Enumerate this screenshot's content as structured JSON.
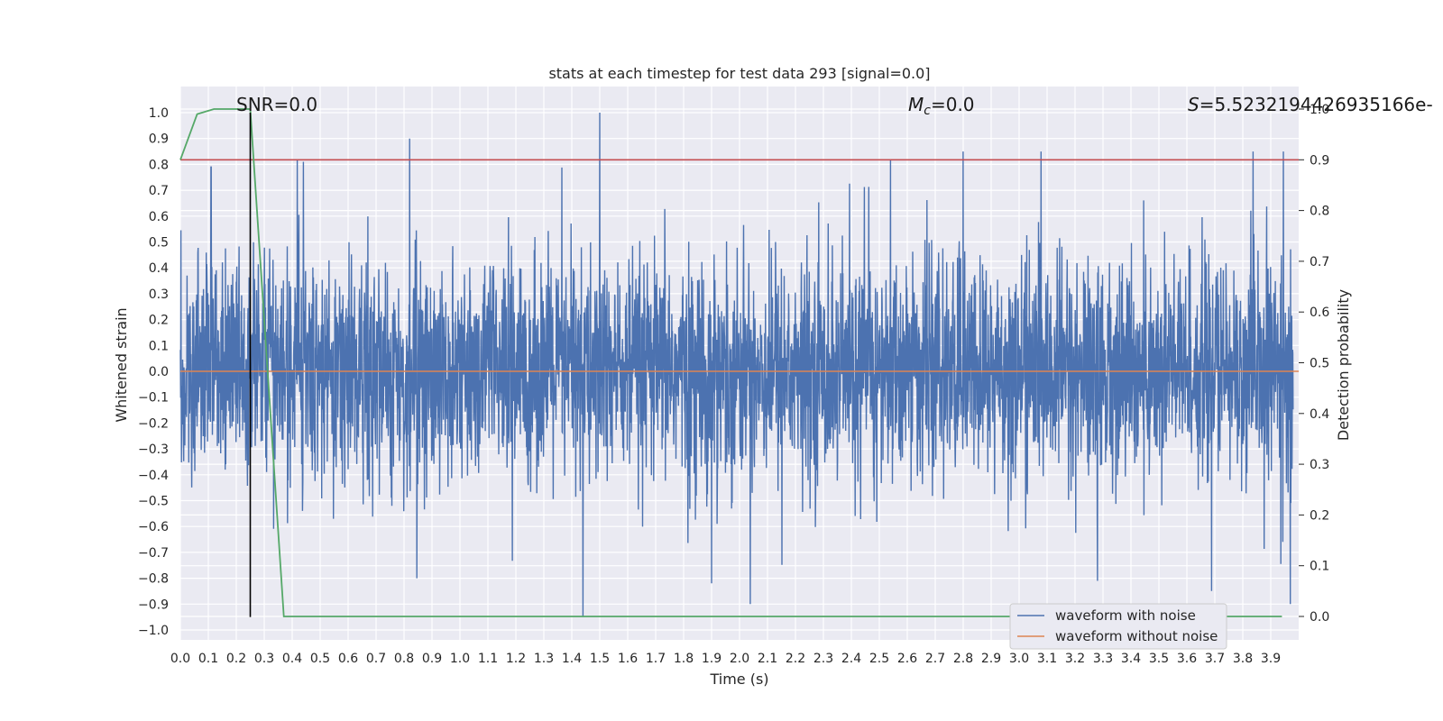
{
  "chart_data": {
    "type": "line",
    "title": "stats at each timestep for test data 293 [signal=0.0]",
    "xlabel": "Time (s)",
    "ylabel": "Whitened strain",
    "y2label": "Detection probability",
    "xlim": [
      0.0,
      4.0
    ],
    "ylim": [
      -1.05,
      1.1
    ],
    "y2lim": [
      -0.05,
      1.0
    ],
    "x_ticks": [
      "0.0",
      "0.1",
      "0.2",
      "0.3",
      "0.4",
      "0.5",
      "0.6",
      "0.7",
      "0.8",
      "0.9",
      "1.0",
      "1.1",
      "1.2",
      "1.3",
      "1.4",
      "1.5",
      "1.6",
      "1.7",
      "1.8",
      "1.9",
      "2.0",
      "2.1",
      "2.2",
      "2.3",
      "2.4",
      "2.5",
      "2.6",
      "2.7",
      "2.8",
      "2.9",
      "3.0",
      "3.1",
      "3.2",
      "3.3",
      "3.4",
      "3.5",
      "3.6",
      "3.7",
      "3.8",
      "3.9"
    ],
    "y_ticks": [
      "1.0",
      "0.9",
      "0.8",
      "0.7",
      "0.6",
      "0.5",
      "0.4",
      "0.3",
      "0.2",
      "0.1",
      "0.0",
      "−0.1",
      "−0.2",
      "−0.3",
      "−0.4",
      "−0.5",
      "−0.6",
      "−0.7",
      "−0.8",
      "−0.9",
      "−1.0"
    ],
    "y2_ticks": [
      "1.0",
      "0.9",
      "0.8",
      "0.7",
      "0.6",
      "0.5",
      "0.4",
      "0.3",
      "0.2",
      "0.1",
      "0.0"
    ],
    "annotations": {
      "snr": "SNR=0.0",
      "mc_symbol": "M",
      "mc_sub": "c",
      "mc_value": "=0.0",
      "s_symbol": "S",
      "s_value": "=5.523219442693516 6e-"
    },
    "annotation_text_exact": "S=5.5232194426935166e-",
    "series": [
      {
        "name": "waveform with noise",
        "color": "#4c72b0",
        "description_of_values": "dense whitened noise, roughly uniform envelope within about [-0.95, 1.0]",
        "notable_peaks": [
          {
            "x": 0.11,
            "y": 0.79
          },
          {
            "x": 0.44,
            "y": 0.81
          },
          {
            "x": 0.82,
            "y": 0.9
          },
          {
            "x": 1.5,
            "y": 1.0
          },
          {
            "x": 1.44,
            "y": -0.95
          },
          {
            "x": 2.8,
            "y": 0.85
          },
          {
            "x": 1.9,
            "y": -0.82
          },
          {
            "x": 3.28,
            "y": -0.81
          }
        ]
      },
      {
        "name": "waveform without noise",
        "color": "#dd8452",
        "x": [
          0.0,
          4.0
        ],
        "y": [
          0.0,
          0.0
        ]
      },
      {
        "axis": "right",
        "color": "#55a868",
        "x": [
          0.0,
          0.06,
          0.12,
          0.18,
          0.25,
          0.31,
          0.37,
          3.94
        ],
        "y": [
          0.9,
          0.99,
          1.0,
          1.0,
          1.0,
          0.5,
          0.0,
          0.0
        ]
      },
      {
        "axis": "right",
        "color": "#c44e52",
        "x": [
          0.0,
          4.0
        ],
        "y": [
          0.9,
          0.9
        ]
      }
    ],
    "vline": {
      "x": 0.25,
      "ymin": -0.95,
      "ymax": 1.0,
      "color": "#000000"
    },
    "grid": true,
    "legend_placement": "lower-right"
  }
}
